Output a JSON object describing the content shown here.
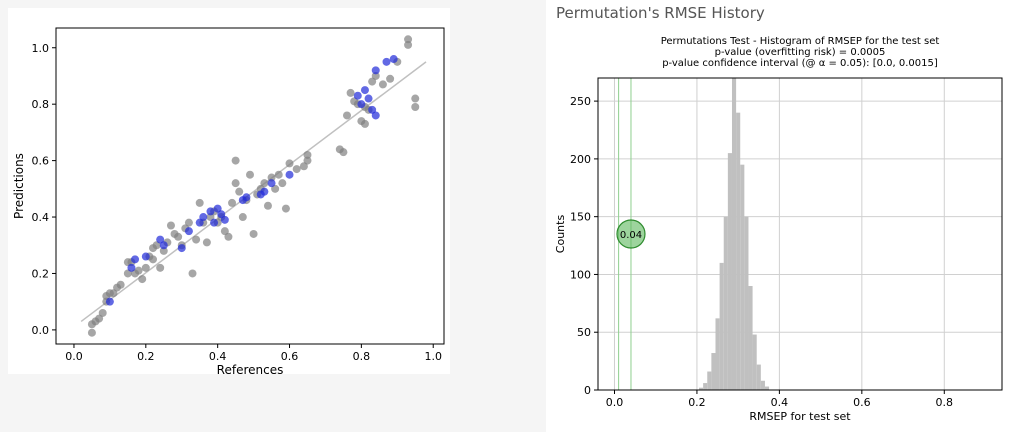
{
  "header": {
    "title": "Permutation's RMSE History"
  },
  "chart_data": [
    {
      "type": "scatter",
      "title": "",
      "xlabel": "References",
      "ylabel": "Predictions",
      "xlim": [
        -0.05,
        1.03
      ],
      "ylim": [
        -0.05,
        1.07
      ],
      "xticks": [
        "0.0",
        "0.2",
        "0.4",
        "0.6",
        "0.8",
        "1.0"
      ],
      "yticks": [
        "0.0",
        "0.2",
        "0.4",
        "0.6",
        "0.8",
        "1.0"
      ],
      "grid": false,
      "reference_line": {
        "x": [
          0.02,
          0.98
        ],
        "y": [
          0.03,
          0.95
        ],
        "color": "#c0c0c0"
      },
      "series": [
        {
          "color": "#808080",
          "points": [
            [
              0.05,
              -0.01
            ],
            [
              0.05,
              0.02
            ],
            [
              0.06,
              0.03
            ],
            [
              0.07,
              0.04
            ],
            [
              0.08,
              0.06
            ],
            [
              0.09,
              0.1
            ],
            [
              0.09,
              0.12
            ],
            [
              0.1,
              0.13
            ],
            [
              0.11,
              0.13
            ],
            [
              0.12,
              0.15
            ],
            [
              0.13,
              0.16
            ],
            [
              0.15,
              0.2
            ],
            [
              0.15,
              0.24
            ],
            [
              0.16,
              0.24
            ],
            [
              0.17,
              0.2
            ],
            [
              0.18,
              0.21
            ],
            [
              0.19,
              0.18
            ],
            [
              0.2,
              0.22
            ],
            [
              0.21,
              0.26
            ],
            [
              0.22,
              0.25
            ],
            [
              0.22,
              0.29
            ],
            [
              0.23,
              0.3
            ],
            [
              0.24,
              0.22
            ],
            [
              0.25,
              0.28
            ],
            [
              0.26,
              0.31
            ],
            [
              0.27,
              0.37
            ],
            [
              0.28,
              0.34
            ],
            [
              0.29,
              0.33
            ],
            [
              0.3,
              0.3
            ],
            [
              0.31,
              0.36
            ],
            [
              0.32,
              0.38
            ],
            [
              0.33,
              0.2
            ],
            [
              0.34,
              0.32
            ],
            [
              0.35,
              0.45
            ],
            [
              0.36,
              0.38
            ],
            [
              0.37,
              0.31
            ],
            [
              0.38,
              0.4
            ],
            [
              0.39,
              0.42
            ],
            [
              0.4,
              0.38
            ],
            [
              0.41,
              0.4
            ],
            [
              0.42,
              0.35
            ],
            [
              0.43,
              0.33
            ],
            [
              0.44,
              0.45
            ],
            [
              0.45,
              0.52
            ],
            [
              0.45,
              0.6
            ],
            [
              0.46,
              0.49
            ],
            [
              0.47,
              0.4
            ],
            [
              0.48,
              0.46
            ],
            [
              0.49,
              0.55
            ],
            [
              0.5,
              0.34
            ],
            [
              0.51,
              0.48
            ],
            [
              0.52,
              0.5
            ],
            [
              0.53,
              0.52
            ],
            [
              0.54,
              0.44
            ],
            [
              0.55,
              0.54
            ],
            [
              0.56,
              0.5
            ],
            [
              0.57,
              0.55
            ],
            [
              0.58,
              0.52
            ],
            [
              0.59,
              0.43
            ],
            [
              0.6,
              0.59
            ],
            [
              0.62,
              0.57
            ],
            [
              0.64,
              0.58
            ],
            [
              0.65,
              0.62
            ],
            [
              0.65,
              0.6
            ],
            [
              0.74,
              0.64
            ],
            [
              0.75,
              0.63
            ],
            [
              0.76,
              0.76
            ],
            [
              0.77,
              0.84
            ],
            [
              0.78,
              0.81
            ],
            [
              0.79,
              0.8
            ],
            [
              0.8,
              0.74
            ],
            [
              0.81,
              0.79
            ],
            [
              0.81,
              0.73
            ],
            [
              0.82,
              0.78
            ],
            [
              0.83,
              0.88
            ],
            [
              0.84,
              0.9
            ],
            [
              0.86,
              0.87
            ],
            [
              0.88,
              0.89
            ],
            [
              0.9,
              0.95
            ],
            [
              0.93,
              1.03
            ],
            [
              0.93,
              1.01
            ],
            [
              0.95,
              0.82
            ],
            [
              0.95,
              0.79
            ]
          ]
        },
        {
          "color": "#1f2ad8",
          "points": [
            [
              0.1,
              0.1
            ],
            [
              0.16,
              0.22
            ],
            [
              0.17,
              0.25
            ],
            [
              0.2,
              0.26
            ],
            [
              0.24,
              0.32
            ],
            [
              0.25,
              0.3
            ],
            [
              0.3,
              0.29
            ],
            [
              0.32,
              0.35
            ],
            [
              0.35,
              0.38
            ],
            [
              0.36,
              0.4
            ],
            [
              0.38,
              0.42
            ],
            [
              0.39,
              0.38
            ],
            [
              0.4,
              0.43
            ],
            [
              0.41,
              0.41
            ],
            [
              0.42,
              0.39
            ],
            [
              0.47,
              0.46
            ],
            [
              0.48,
              0.47
            ],
            [
              0.52,
              0.48
            ],
            [
              0.53,
              0.49
            ],
            [
              0.55,
              0.52
            ],
            [
              0.6,
              0.55
            ],
            [
              0.79,
              0.83
            ],
            [
              0.8,
              0.8
            ],
            [
              0.81,
              0.85
            ],
            [
              0.82,
              0.82
            ],
            [
              0.83,
              0.78
            ],
            [
              0.84,
              0.76
            ],
            [
              0.84,
              0.92
            ],
            [
              0.87,
              0.95
            ],
            [
              0.89,
              0.96
            ]
          ]
        }
      ]
    },
    {
      "type": "bar",
      "title": "Permutations Test - Histogram of RMSEP for the test set\np-value (overfitting risk) = 0.0005\np-value confidence interval (@ α = 0.05): [0.0, 0.0015]",
      "title_lines": [
        "Permutations Test - Histogram of RMSEP for the test set",
        "p-value (overfitting risk) = 0.0005",
        "p-value confidence interval (@ α = 0.05): [0.0, 0.0015]"
      ],
      "xlabel": "RMSEP for test set",
      "ylabel": "Counts",
      "xlim": [
        -0.04,
        0.94
      ],
      "ylim": [
        0,
        270
      ],
      "xticks": [
        0.0,
        0.2,
        0.4,
        0.6,
        0.8
      ],
      "yticks": [
        0,
        50,
        100,
        150,
        200,
        250
      ],
      "grid": true,
      "bar_color": "#c0c0c0",
      "bin_width": 0.01,
      "bins": [
        {
          "x": 0.21,
          "count": 2
        },
        {
          "x": 0.22,
          "count": 6
        },
        {
          "x": 0.23,
          "count": 16
        },
        {
          "x": 0.24,
          "count": 32
        },
        {
          "x": 0.25,
          "count": 62
        },
        {
          "x": 0.26,
          "count": 110
        },
        {
          "x": 0.27,
          "count": 150
        },
        {
          "x": 0.28,
          "count": 205
        },
        {
          "x": 0.29,
          "count": 270
        },
        {
          "x": 0.3,
          "count": 240
        },
        {
          "x": 0.31,
          "count": 195
        },
        {
          "x": 0.32,
          "count": 150
        },
        {
          "x": 0.33,
          "count": 90
        },
        {
          "x": 0.34,
          "count": 48
        },
        {
          "x": 0.35,
          "count": 22
        },
        {
          "x": 0.36,
          "count": 8
        },
        {
          "x": 0.37,
          "count": 3
        }
      ],
      "observed_value": 0.04,
      "observed_label": "0.04",
      "observed_marker_count": 135,
      "observed_color": "#5cb85c",
      "vlines": [
        0.01,
        0.04
      ]
    }
  ]
}
